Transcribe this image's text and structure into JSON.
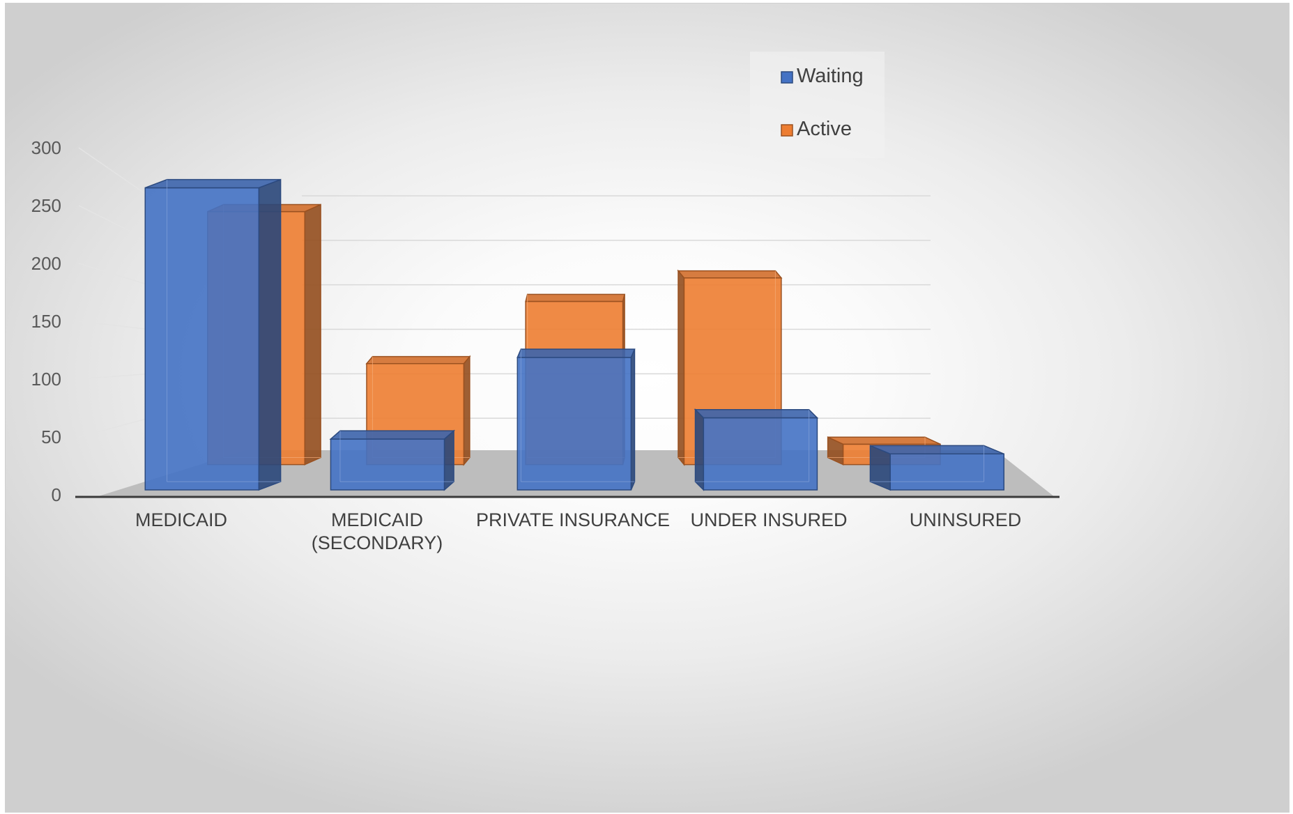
{
  "chart_data": {
    "type": "bar",
    "subtype": "3d-column",
    "categories": [
      "MEDICAID",
      "MEDICAID (SECONDARY)",
      "PRIVATE INSURANCE",
      "UNDER INSURED",
      "UNINSURED"
    ],
    "category_lines": [
      [
        "MEDICAID"
      ],
      [
        "MEDICAID",
        "(SECONDARY)"
      ],
      [
        "PRIVATE INSURANCE"
      ],
      [
        "UNDER INSURED"
      ],
      [
        "UNINSURED"
      ]
    ],
    "series": [
      {
        "name": "Waiting",
        "values": [
          285,
          48,
          125,
          68,
          34
        ],
        "color": "#4472C4"
      },
      {
        "name": "Active",
        "values": [
          248,
          99,
          160,
          183,
          20
        ],
        "color": "#ED7D31"
      }
    ],
    "y_ticks": [
      "0",
      "50",
      "100",
      "150",
      "200",
      "250",
      "300"
    ],
    "ylim": [
      0,
      300
    ],
    "grid": true,
    "legend": {
      "position": "top-right"
    },
    "title": "",
    "xlabel": "",
    "ylabel": ""
  }
}
